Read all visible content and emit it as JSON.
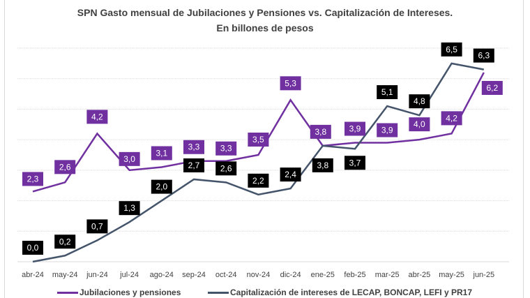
{
  "chart_data": {
    "type": "line",
    "title": "SPN Gasto mensual de Jubilaciones y Pensiones vs. Capitalización de Intereses.",
    "subtitle": "En billones de pesos",
    "xlabel": "",
    "ylabel": "",
    "ylim": [
      0,
      7
    ],
    "grid": true,
    "legend_position": "bottom",
    "categories": [
      "abr-24",
      "may-24",
      "jun-24",
      "jul-24",
      "ago-24",
      "sep-24",
      "oct-24",
      "nov-24",
      "dic-24",
      "ene-25",
      "feb-25",
      "mar-25",
      "abr-25",
      "may-25",
      "jun-25"
    ],
    "series": [
      {
        "name": "Jubilaciones y pensiones",
        "color": "#7030a0",
        "values": [
          2.3,
          2.6,
          4.2,
          3.0,
          3.1,
          3.3,
          3.3,
          3.5,
          5.3,
          3.8,
          3.9,
          3.9,
          4.0,
          4.2,
          6.2
        ],
        "labels": [
          "2,3",
          "2,6",
          "4,2",
          "3,0",
          "3,1",
          "3,3",
          "3,3",
          "3,5",
          "5,3",
          "3,8",
          "3,9",
          "3,9",
          "4,0",
          "4,2",
          "6,2"
        ]
      },
      {
        "name": "Capitalización de intereses de LECAP, BONCAP, LEFI y PR17",
        "color": "#44546a",
        "values": [
          0.0,
          0.2,
          0.7,
          1.3,
          2.0,
          2.7,
          2.6,
          2.2,
          2.4,
          3.8,
          3.7,
          5.1,
          4.8,
          6.5,
          6.3
        ],
        "labels": [
          "0,0",
          "0,2",
          "0,7",
          "1,3",
          "2,0",
          "2,7",
          "2,6",
          "2,2",
          "2,4",
          "3,8",
          "3,7",
          "5,1",
          "4,8",
          "6,5",
          "6,3"
        ]
      }
    ]
  }
}
